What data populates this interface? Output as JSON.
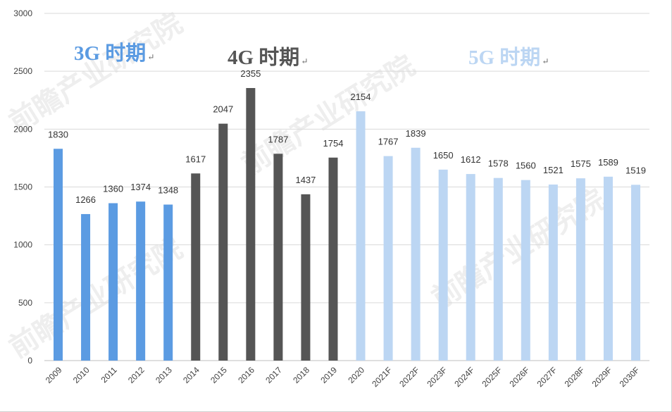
{
  "chart_data": {
    "type": "bar",
    "title": "",
    "xlabel": "",
    "ylabel": "",
    "ylim": [
      0,
      3000
    ],
    "yticks": [
      0,
      500,
      1000,
      1500,
      2000,
      2500,
      3000
    ],
    "grid": true,
    "categories": [
      "2009",
      "2010",
      "2011",
      "2012",
      "2013",
      "2014",
      "2015",
      "2016",
      "2017",
      "2018",
      "2019",
      "2020",
      "2021F",
      "2022F",
      "2023F",
      "2024F",
      "2025F",
      "2026F",
      "2027F",
      "2028F",
      "2029F",
      "2030F"
    ],
    "values": [
      1830,
      1266,
      1360,
      1374,
      1348,
      1617,
      2047,
      2355,
      1787,
      1437,
      1754,
      2154,
      1767,
      1839,
      1650,
      1612,
      1578,
      1560,
      1521,
      1575,
      1589,
      1519
    ],
    "periods": [
      {
        "label": "3G 时期",
        "mark": "↵",
        "color": "#5b9be2",
        "indices": [
          0,
          1,
          2,
          3,
          4
        ]
      },
      {
        "label": "4G 时期",
        "mark": "↵",
        "color": "#555555",
        "indices": [
          5,
          6,
          7,
          8,
          9,
          10
        ]
      },
      {
        "label": "5G 时期",
        "mark": "↵",
        "color": "#bcd6f3",
        "indices": [
          11,
          12,
          13,
          14,
          15,
          16,
          17,
          18,
          19,
          20,
          21
        ]
      }
    ]
  },
  "watermark": "前瞻产业研究院"
}
